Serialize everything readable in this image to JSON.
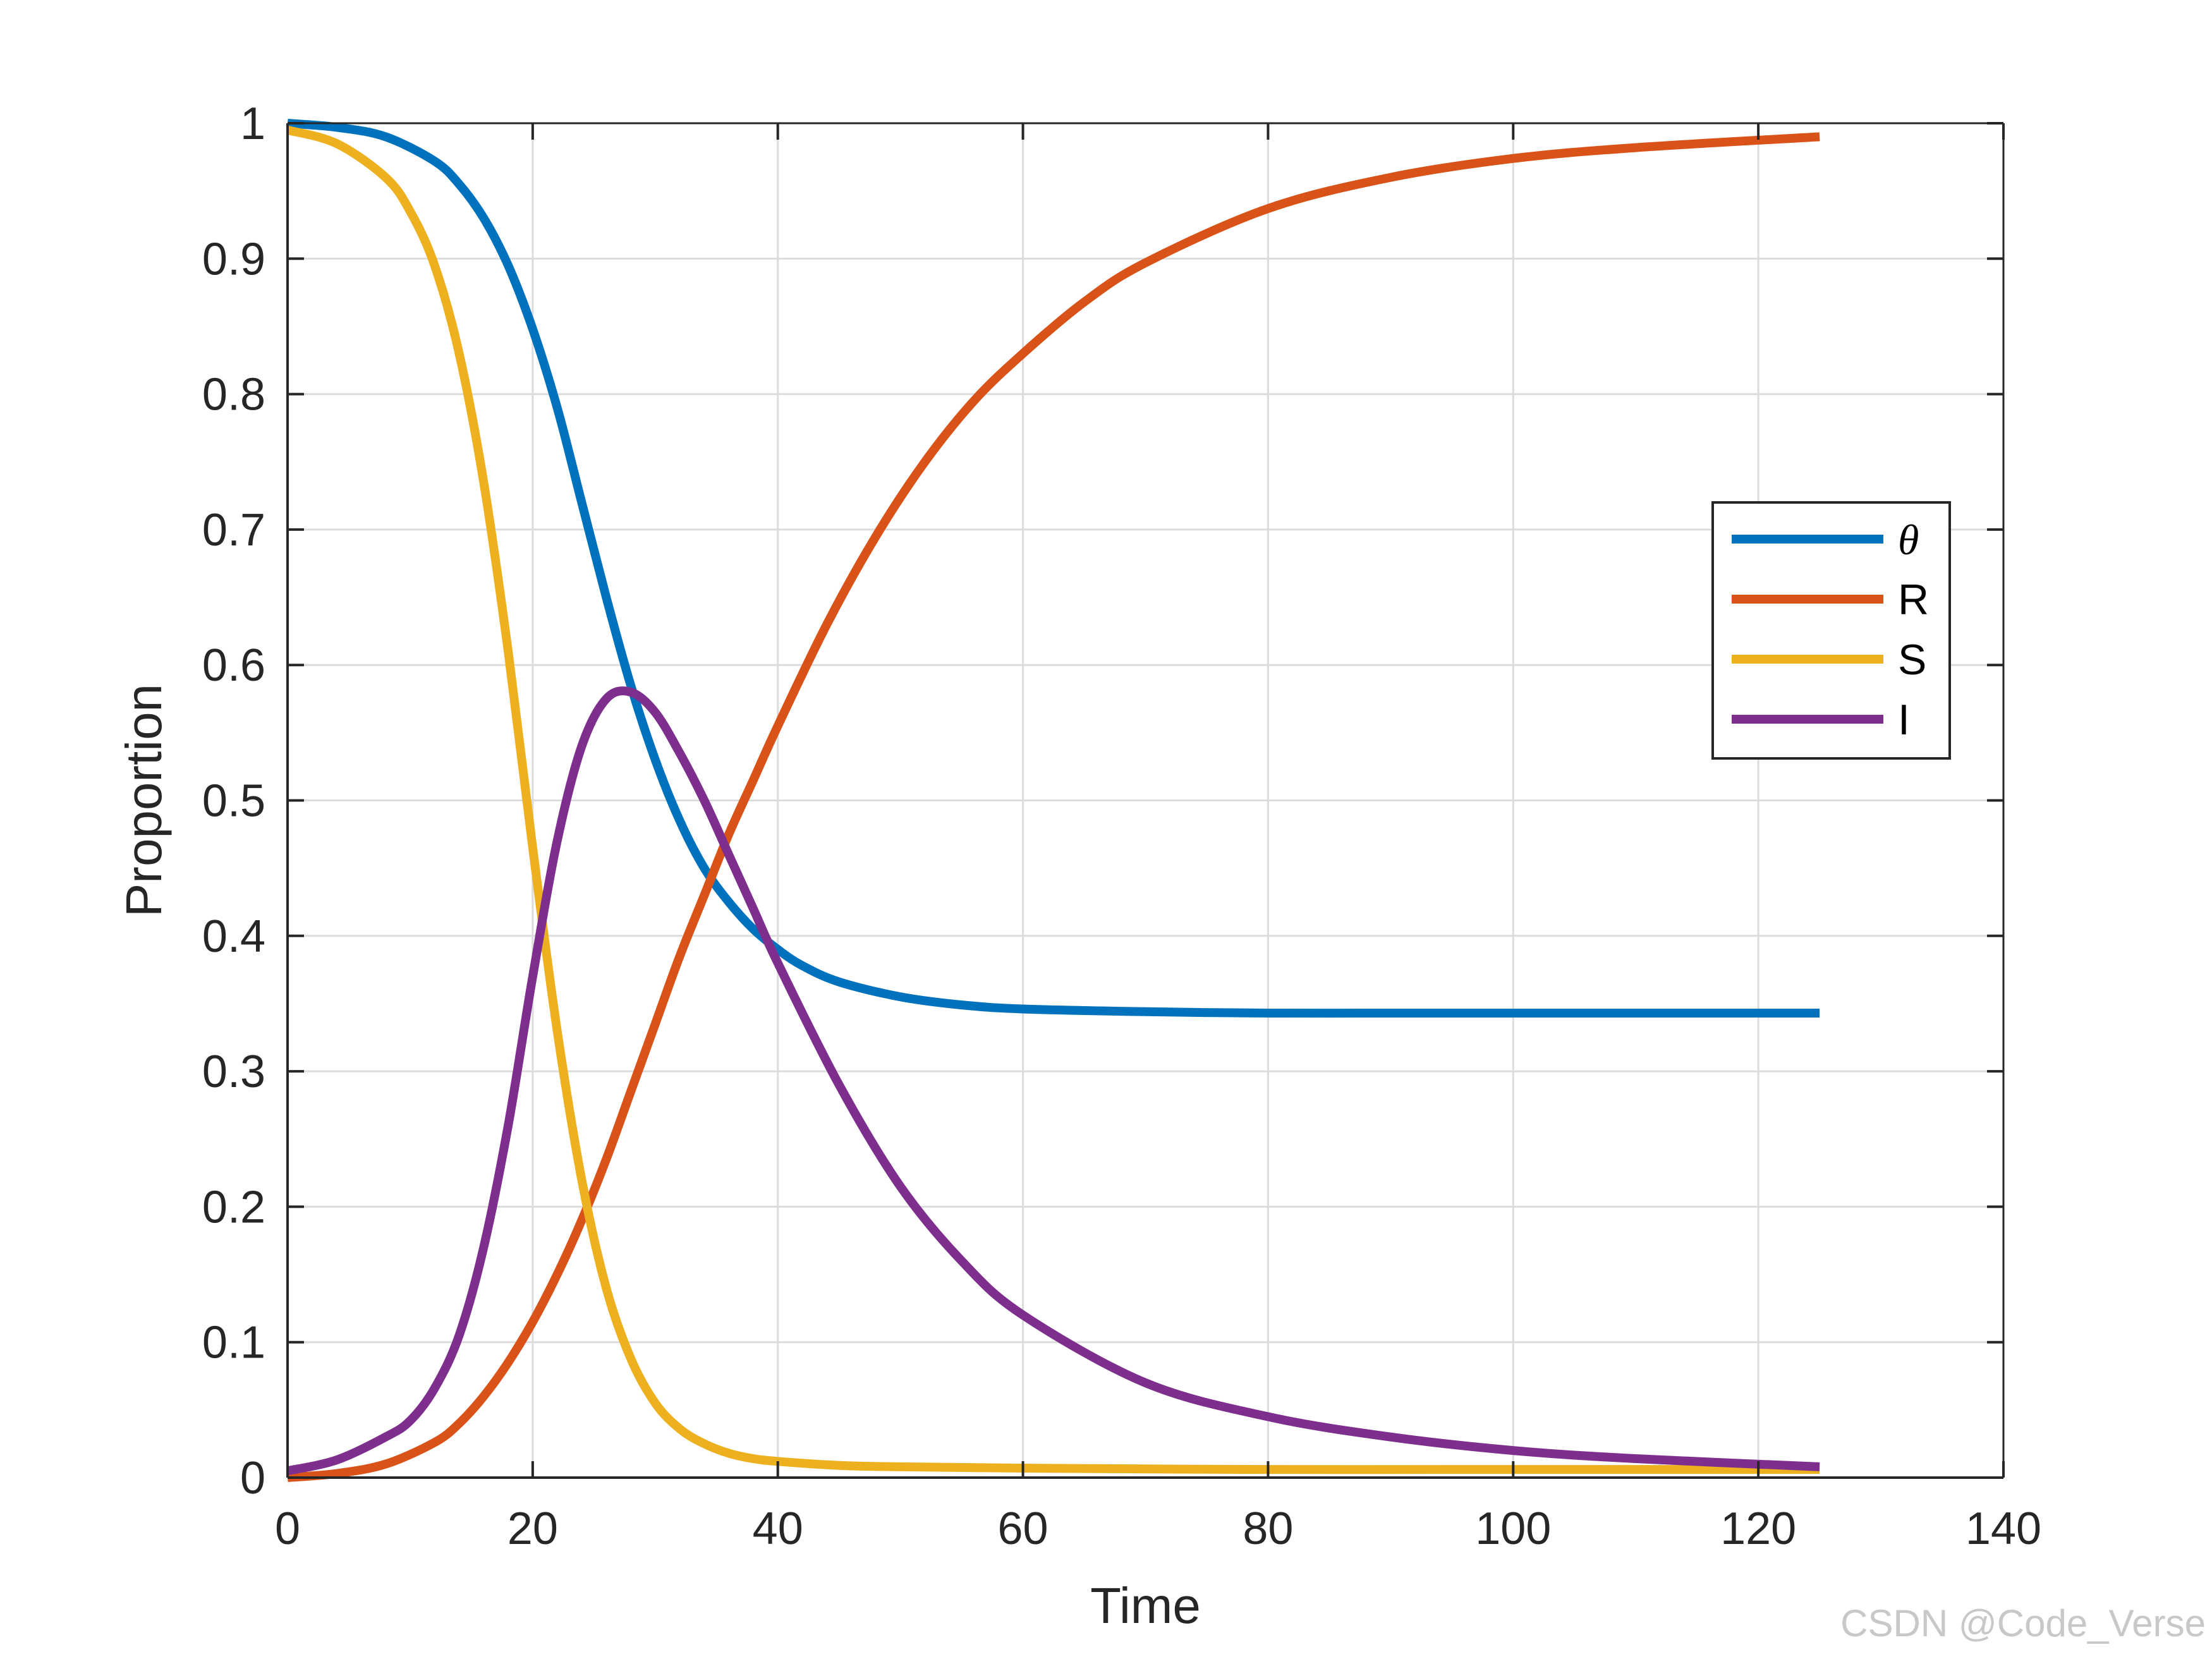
{
  "chart_data": {
    "type": "line",
    "title": "",
    "xlabel": "Time",
    "ylabel": "Proportion",
    "xlim": [
      0,
      140
    ],
    "ylim": [
      0,
      1
    ],
    "xticks": [
      0,
      20,
      40,
      60,
      80,
      100,
      120,
      140
    ],
    "yticks": [
      0,
      0.1,
      0.2,
      0.3,
      0.4,
      0.5,
      0.6,
      0.7,
      0.8,
      0.9,
      1
    ],
    "xtick_labels": [
      "0",
      "20",
      "40",
      "60",
      "80",
      "100",
      "120",
      "140"
    ],
    "ytick_labels": [
      "0",
      "0.1",
      "0.2",
      "0.3",
      "0.4",
      "0.5",
      "0.6",
      "0.7",
      "0.8",
      "0.9",
      "1"
    ],
    "grid": true,
    "legend_position": "right",
    "series": [
      {
        "name": "θ",
        "color": "#0072BD",
        "x": [
          0,
          4,
          8,
          12,
          14,
          16,
          18,
          20,
          22,
          24,
          26,
          28,
          30,
          32,
          34,
          36,
          38,
          40,
          42,
          45,
          50,
          55,
          60,
          70,
          80,
          90,
          100,
          110,
          125
        ],
        "y": [
          1.0,
          0.997,
          0.99,
          0.972,
          0.955,
          0.93,
          0.895,
          0.848,
          0.79,
          0.72,
          0.65,
          0.585,
          0.53,
          0.485,
          0.45,
          0.425,
          0.405,
          0.39,
          0.378,
          0.366,
          0.355,
          0.349,
          0.346,
          0.344,
          0.343,
          0.343,
          0.343,
          0.343,
          0.343
        ]
      },
      {
        "name": "R",
        "color": "#D95319",
        "x": [
          0,
          4,
          8,
          12,
          14,
          16,
          18,
          20,
          22,
          24,
          26,
          28,
          30,
          32,
          34,
          36,
          38,
          40,
          44,
          48,
          52,
          56,
          60,
          65,
          70,
          80,
          90,
          100,
          110,
          125
        ],
        "y": [
          0.0,
          0.003,
          0.01,
          0.026,
          0.04,
          0.06,
          0.085,
          0.115,
          0.15,
          0.19,
          0.235,
          0.285,
          0.335,
          0.385,
          0.43,
          0.475,
          0.515,
          0.555,
          0.63,
          0.695,
          0.75,
          0.795,
          0.83,
          0.868,
          0.897,
          0.937,
          0.96,
          0.974,
          0.982,
          0.99
        ]
      },
      {
        "name": "S",
        "color": "#EDB120",
        "x": [
          0,
          4,
          8,
          10,
          12,
          14,
          16,
          18,
          20,
          22,
          24,
          26,
          28,
          30,
          32,
          34,
          36,
          38,
          40,
          45,
          50,
          60,
          80,
          100,
          125
        ],
        "y": [
          0.995,
          0.985,
          0.96,
          0.935,
          0.895,
          0.83,
          0.735,
          0.61,
          0.465,
          0.33,
          0.22,
          0.14,
          0.088,
          0.055,
          0.036,
          0.025,
          0.018,
          0.014,
          0.012,
          0.009,
          0.008,
          0.007,
          0.006,
          0.006,
          0.006
        ]
      },
      {
        "name": "I",
        "color": "#7E2F8E",
        "x": [
          0,
          4,
          8,
          10,
          12,
          14,
          16,
          18,
          20,
          22,
          24,
          26,
          28,
          30,
          32,
          34,
          36,
          38,
          40,
          45,
          50,
          55,
          60,
          70,
          80,
          90,
          100,
          110,
          125
        ],
        "y": [
          0.005,
          0.013,
          0.03,
          0.042,
          0.066,
          0.105,
          0.17,
          0.26,
          0.37,
          0.47,
          0.54,
          0.575,
          0.58,
          0.565,
          0.535,
          0.5,
          0.46,
          0.42,
          0.38,
          0.29,
          0.215,
          0.16,
          0.12,
          0.07,
          0.045,
          0.03,
          0.02,
          0.014,
          0.008
        ]
      }
    ]
  },
  "watermark": "CSDN @Code_Verse"
}
